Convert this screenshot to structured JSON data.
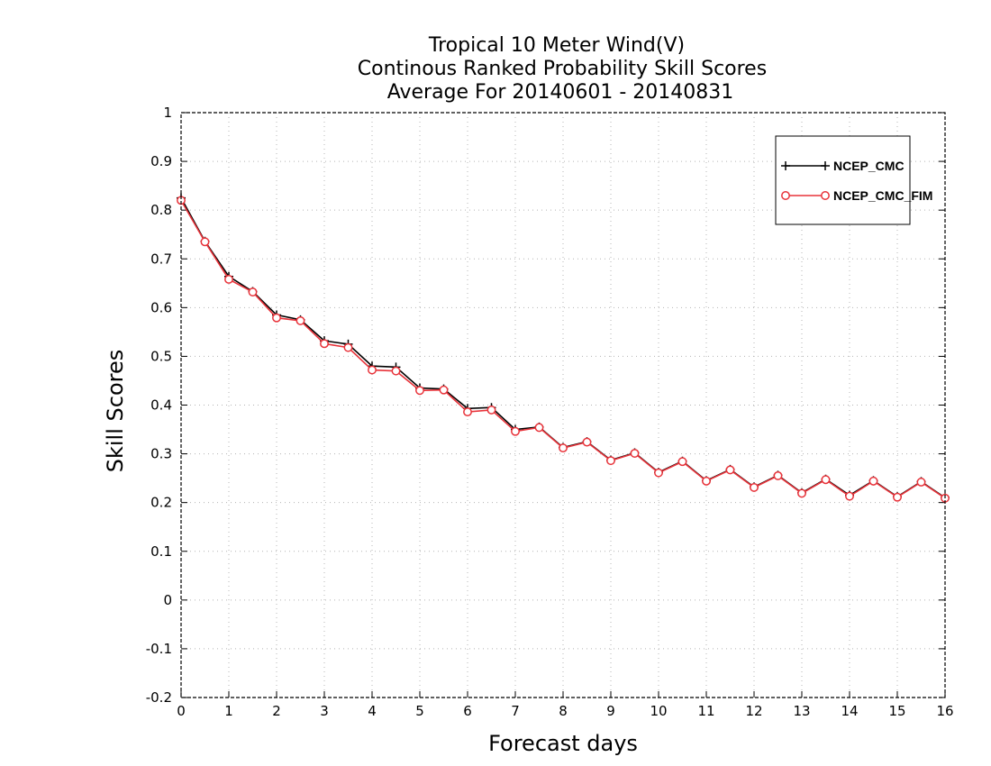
{
  "chart_data": {
    "type": "line",
    "title_lines": [
      "Tropical 10 Meter Wind(V)",
      "Continous Ranked Probability Skill Scores",
      "Average For 20140601 - 20140831"
    ],
    "xlabel": "Forecast days",
    "ylabel": "Skill Scores",
    "xlim": [
      0,
      16
    ],
    "ylim": [
      -0.2,
      1
    ],
    "x_ticks": [
      "0",
      "1",
      "2",
      "3",
      "4",
      "5",
      "6",
      "7",
      "8",
      "9",
      "10",
      "11",
      "12",
      "13",
      "14",
      "15",
      "16"
    ],
    "y_ticks": [
      "1",
      "0.9",
      "0.8",
      "0.7",
      "0.6",
      "0.5",
      "0.4",
      "0.3",
      "0.2",
      "0.1",
      "0",
      "-0.1",
      "-0.2"
    ],
    "grid": true,
    "legend_position": "top-right",
    "x": [
      0,
      0.5,
      1,
      1.5,
      2,
      2.5,
      3,
      3.5,
      4,
      4.5,
      5,
      5.5,
      6,
      6.5,
      7,
      7.5,
      8,
      8.5,
      9,
      9.5,
      10,
      10.5,
      11,
      11.5,
      12,
      12.5,
      13,
      13.5,
      14,
      14.5,
      15,
      15.5,
      16
    ],
    "series": [
      {
        "name": "NCEP_CMC",
        "color": "#000000",
        "marker": "plus",
        "values": [
          0.825,
          0.736,
          0.664,
          0.633,
          0.585,
          0.575,
          0.532,
          0.525,
          0.48,
          0.478,
          0.435,
          0.433,
          0.393,
          0.395,
          0.35,
          0.355,
          0.313,
          0.325,
          0.287,
          0.302,
          0.262,
          0.285,
          0.245,
          0.268,
          0.232,
          0.256,
          0.22,
          0.248,
          0.215,
          0.245,
          0.212,
          0.243,
          0.21
        ]
      },
      {
        "name": "NCEP_CMC_FIM",
        "color": "#e8333a",
        "marker": "circle",
        "values": [
          0.82,
          0.735,
          0.658,
          0.632,
          0.579,
          0.573,
          0.526,
          0.518,
          0.472,
          0.47,
          0.43,
          0.431,
          0.386,
          0.39,
          0.346,
          0.354,
          0.312,
          0.324,
          0.286,
          0.301,
          0.261,
          0.284,
          0.244,
          0.267,
          0.231,
          0.255,
          0.219,
          0.247,
          0.213,
          0.244,
          0.211,
          0.242,
          0.209
        ]
      }
    ]
  }
}
